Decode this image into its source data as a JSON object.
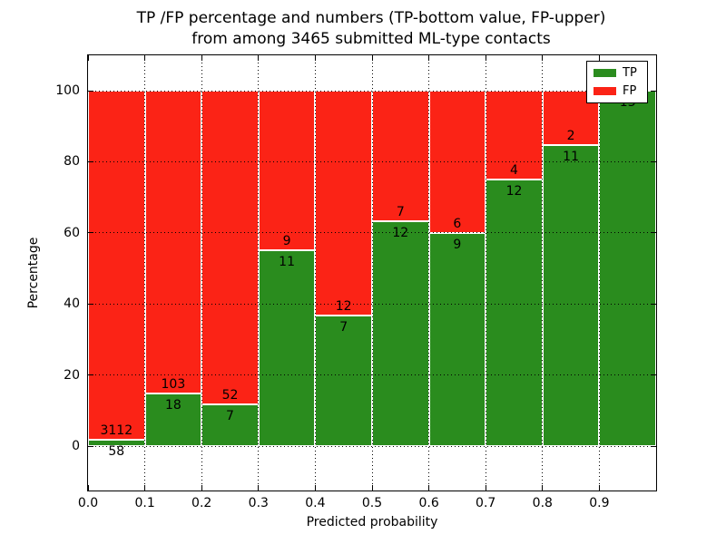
{
  "chart_data": {
    "type": "bar",
    "stacked": true,
    "title": "TP /FP percentage and numbers (TP-bottom value, FP-upper) from among 3465 submitted ML-type contacts",
    "title_line1": "TP /FP percentage and numbers (TP-bottom value, FP-upper)",
    "title_line2": "from among 3465 submitted ML-type contacts",
    "xlabel": "Predicted probability",
    "ylabel": "Percentage",
    "total_contacts": 3465,
    "categories": [
      "0.0-0.1",
      "0.1-0.2",
      "0.2-0.3",
      "0.3-0.4",
      "0.4-0.5",
      "0.5-0.6",
      "0.6-0.7",
      "0.7-0.8",
      "0.8-0.9",
      "0.9-1.0"
    ],
    "series": [
      {
        "name": "TP",
        "color": "#2a8c1e",
        "counts": [
          58,
          18,
          7,
          11,
          7,
          12,
          9,
          12,
          11,
          13
        ]
      },
      {
        "name": "FP",
        "color": "#fb2316",
        "counts": [
          3112,
          103,
          52,
          9,
          12,
          7,
          6,
          4,
          2,
          0
        ]
      }
    ],
    "tp_percent": [
      1.83,
      14.88,
      11.86,
      55.0,
      36.84,
      63.16,
      60.0,
      75.0,
      84.62,
      100.0
    ],
    "xticks": [
      "0.0",
      "0.1",
      "0.2",
      "0.3",
      "0.4",
      "0.5",
      "0.6",
      "0.7",
      "0.8",
      "0.9"
    ],
    "yticks": [
      "0",
      "20",
      "40",
      "60",
      "80",
      "100"
    ],
    "xlim": [
      0.0,
      1.0
    ],
    "ylim": [
      -12.5,
      110
    ],
    "grid": true,
    "bar_edge_color": "#ffffff",
    "legend": {
      "position": "upper right",
      "entries": [
        {
          "label": "TP",
          "color": "#2a8c1e"
        },
        {
          "label": "FP",
          "color": "#fb2316"
        }
      ]
    }
  }
}
